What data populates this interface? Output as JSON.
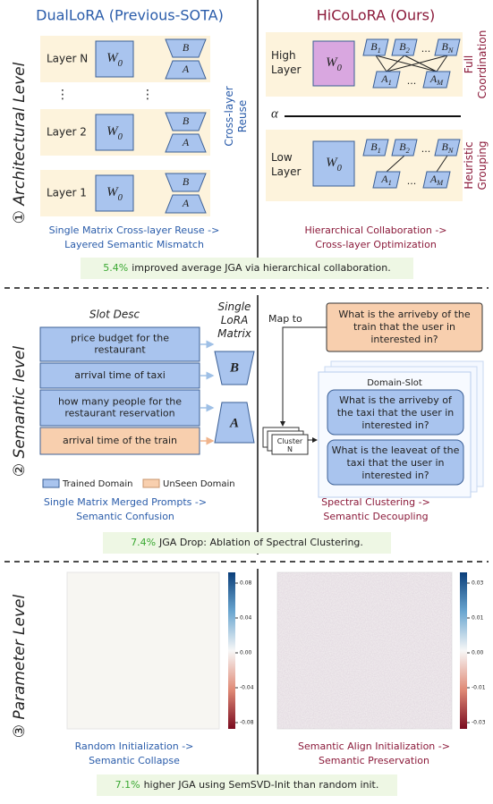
{
  "header": {
    "left": "DualLoRA (Previous-SOTA)",
    "right": "HiCoLoRA (Ours)"
  },
  "symbols": {
    "w": "W",
    "w_sub": "0",
    "b": "B",
    "a": "A",
    "vdots": "⋮",
    "alpha": "α",
    "ellipsis": "..."
  },
  "architectural": {
    "label": "① Architectural Level",
    "left": {
      "layers": [
        "Layer N",
        "Layer 2",
        "Layer 1"
      ],
      "side_label": [
        "Cross-layer",
        "Reuse"
      ],
      "caption": [
        "Single Matrix Cross-layer Reuse ->",
        "Layered Semantic Mismatch"
      ]
    },
    "right": {
      "high": [
        "High",
        "Layer"
      ],
      "low": [
        "Low",
        "Layer"
      ],
      "b_subs": [
        "1",
        "2",
        "N"
      ],
      "a_subs": [
        "1",
        "M"
      ],
      "high_label": [
        "Full",
        "Coordination"
      ],
      "low_label": [
        "Heuristic",
        "Grouping"
      ],
      "caption": [
        "Hierarchical Collaboration ->",
        "Cross-layer Optimization"
      ]
    },
    "banner": {
      "highlight": "5.4%",
      "text": "improved average JGA via hierarchical collaboration."
    }
  },
  "semantic": {
    "label": "② Semantic level",
    "left": {
      "slot_title": "Slot Desc",
      "matrix_title": [
        "Single",
        "LoRA",
        "Matrix"
      ],
      "slots": [
        [
          "price budget for the",
          "restaurant"
        ],
        [
          "arrival time of taxi"
        ],
        [
          "how many people for the",
          "restaurant reservation"
        ],
        [
          "arrival time of the train"
        ]
      ],
      "legend": [
        "Trained Domain",
        "UnSeen Domain"
      ],
      "caption": [
        "Single Matrix Merged Prompts ->",
        "Semantic Confusion"
      ]
    },
    "right": {
      "map_to": "Map to",
      "query": [
        "What is the arriveby of the",
        "train that the user in",
        "interested in?"
      ],
      "card_title": "Domain-Slot",
      "prompts": [
        [
          "What is the arriveby of",
          "the taxi that the user in",
          "interested in?"
        ],
        [
          "What is the leaveat of the",
          "taxi that the user in",
          "interested in?"
        ]
      ],
      "cluster": [
        "Cluster",
        "N"
      ],
      "caption": [
        "Spectral Clustering ->",
        "Semantic Decoupling"
      ]
    },
    "banner": {
      "highlight": "7.4%",
      "text": "JGA Drop: Ablation of Spectral Clustering."
    }
  },
  "parameter": {
    "label": "③ Parameter Level",
    "left": {
      "colorbar_ticks": [
        "0.08",
        "0.04",
        "0.00",
        "-0.04",
        "-0.08"
      ],
      "caption": [
        "Random Initialization ->",
        "Semantic Collapse"
      ]
    },
    "right": {
      "colorbar_ticks": [
        "0.03",
        "0.01",
        "0.00",
        "-0.01",
        "-0.03"
      ],
      "caption": [
        "Semantic Align Initialization ->",
        "Semantic Preservation"
      ]
    },
    "banner": {
      "highlight": "7.1%",
      "text": "higher JGA using SemSVD-Init than random init."
    }
  }
}
